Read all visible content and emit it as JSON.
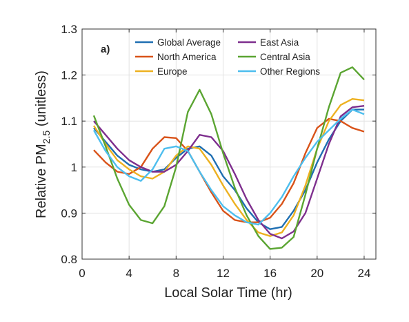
{
  "chart_data": {
    "type": "line",
    "panel_label": "a)",
    "xlabel": "Local Solar Time (hr)",
    "ylabel": "Relative PM",
    "ylabel_subscript": "2.5",
    "ylabel_suffix": " (unitless)",
    "xlim": [
      0,
      25
    ],
    "ylim": [
      0.8,
      1.3
    ],
    "xticks": [
      0,
      4,
      8,
      12,
      16,
      20,
      24
    ],
    "yticks": [
      0.8,
      0.9,
      1,
      1.1,
      1.2,
      1.3
    ],
    "ytick_labels": [
      "0.8",
      "0.9",
      "1",
      "1.1",
      "1.2",
      "1.3"
    ],
    "grid": true,
    "legend_position": "top",
    "x": [
      1,
      2,
      3,
      4,
      5,
      6,
      7,
      8,
      9,
      10,
      11,
      12,
      13,
      14,
      15,
      16,
      17,
      18,
      19,
      20,
      21,
      22,
      23,
      24
    ],
    "series": [
      {
        "name": "Global Average",
        "color": "#1f6fb2",
        "values": [
          1.085,
          1.055,
          1.025,
          1.005,
          0.995,
          0.99,
          0.995,
          1.02,
          1.04,
          1.045,
          1.025,
          0.98,
          0.95,
          0.91,
          0.88,
          0.865,
          0.87,
          0.905,
          0.95,
          1.01,
          1.06,
          1.1,
          1.125,
          1.125
        ]
      },
      {
        "name": "North America",
        "color": "#d95319",
        "values": [
          1.037,
          1.01,
          0.99,
          0.985,
          1.0,
          1.04,
          1.065,
          1.063,
          1.035,
          0.99,
          0.945,
          0.905,
          0.885,
          0.88,
          0.88,
          0.89,
          0.92,
          0.965,
          1.03,
          1.085,
          1.105,
          1.1,
          1.085,
          1.077
        ]
      },
      {
        "name": "Europe",
        "color": "#edb120",
        "values": [
          1.09,
          1.05,
          1.015,
          0.995,
          0.98,
          0.975,
          0.99,
          1.025,
          1.045,
          1.04,
          1.005,
          0.96,
          0.92,
          0.885,
          0.858,
          0.85,
          0.858,
          0.895,
          0.96,
          1.04,
          1.1,
          1.135,
          1.148,
          1.145
        ]
      },
      {
        "name": "East Asia",
        "color": "#7e2f8e",
        "values": [
          1.1,
          1.07,
          1.04,
          1.015,
          1.0,
          0.99,
          0.99,
          1.005,
          1.035,
          1.07,
          1.065,
          1.035,
          0.985,
          0.93,
          0.885,
          0.855,
          0.845,
          0.86,
          0.9,
          0.975,
          1.05,
          1.11,
          1.13,
          1.133
        ]
      },
      {
        "name": "Central Asia",
        "color": "#5ba532",
        "values": [
          1.112,
          1.045,
          0.975,
          0.918,
          0.885,
          0.878,
          0.915,
          1.0,
          1.12,
          1.168,
          1.115,
          1.03,
          0.955,
          0.895,
          0.85,
          0.822,
          0.825,
          0.848,
          0.94,
          1.04,
          1.13,
          1.205,
          1.217,
          1.19
        ]
      },
      {
        "name": "Other Regions",
        "color": "#4dbeee",
        "values": [
          1.08,
          1.035,
          1.0,
          0.98,
          0.97,
          0.995,
          1.04,
          1.045,
          1.035,
          0.99,
          0.95,
          0.915,
          0.895,
          0.88,
          0.875,
          0.9,
          0.935,
          0.98,
          1.02,
          1.055,
          1.08,
          1.105,
          1.125,
          1.115
        ]
      }
    ]
  }
}
